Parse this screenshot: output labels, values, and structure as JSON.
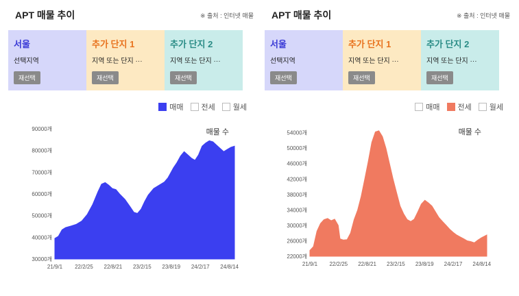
{
  "panels": [
    {
      "title": "APT 매물 추이",
      "source": "※ 출처 : 인터넷 매물",
      "cards": [
        {
          "name": "서울",
          "sub": "선택지역",
          "button": "재선택",
          "bg": "#d6d7fa",
          "color": "#3a3ad6"
        },
        {
          "name": "추가 단지 1",
          "sub": "지역 또는 단지 ···",
          "button": "재선택",
          "bg": "#fde9c2",
          "color": "#e8721e"
        },
        {
          "name": "추가 단지 2",
          "sub": "지역 또는 단지 ···",
          "button": "재선택",
          "bg": "#c9ecea",
          "color": "#2a8c86"
        }
      ],
      "legend": [
        {
          "label": "매매",
          "active": true,
          "color": "#3b3ff0"
        },
        {
          "label": "전세",
          "active": false,
          "color": "#f07a60"
        },
        {
          "label": "월세",
          "active": false,
          "color": "#888888"
        }
      ],
      "count_label": "매물 수"
    },
    {
      "title": "APT 매물 추이",
      "source": "※ 출처 : 인터넷 매물",
      "cards": [
        {
          "name": "서울",
          "sub": "선택지역",
          "button": "재선택",
          "bg": "#d6d7fa",
          "color": "#3a3ad6"
        },
        {
          "name": "추가 단지 1",
          "sub": "지역 또는 단지 ···",
          "button": "재선택",
          "bg": "#fde9c2",
          "color": "#e8721e"
        },
        {
          "name": "추가 단지 2",
          "sub": "지역 또는 단지 ···",
          "button": "재선택",
          "bg": "#c9ecea",
          "color": "#2a8c86"
        }
      ],
      "legend": [
        {
          "label": "매매",
          "active": false,
          "color": "#3b3ff0"
        },
        {
          "label": "전세",
          "active": true,
          "color": "#f07a60"
        },
        {
          "label": "월세",
          "active": false,
          "color": "#888888"
        }
      ],
      "count_label": "매물 수"
    }
  ],
  "chart_data": [
    {
      "type": "area",
      "series_label": "매매",
      "color": "#3b3ff0",
      "y_ticks": [
        30000,
        40000,
        50000,
        60000,
        70000,
        80000,
        90000
      ],
      "y_tick_labels": [
        "30000개",
        "40000개",
        "50000개",
        "60000개",
        "70000개",
        "80000개",
        "90000개"
      ],
      "ylim": [
        30000,
        90000
      ],
      "x_ticks": [
        "21/9/1",
        "22/2/25",
        "22/8/21",
        "23/2/15",
        "23/8/19",
        "24/2/17",
        "24/8/14"
      ],
      "x_tick_pos": [
        0,
        0.162,
        0.324,
        0.486,
        0.648,
        0.81,
        0.972
      ],
      "points": [
        [
          0,
          39500
        ],
        [
          0.02,
          40500
        ],
        [
          0.04,
          43500
        ],
        [
          0.06,
          44500
        ],
        [
          0.09,
          45200
        ],
        [
          0.12,
          46000
        ],
        [
          0.15,
          47500
        ],
        [
          0.18,
          50500
        ],
        [
          0.21,
          55000
        ],
        [
          0.24,
          61000
        ],
        [
          0.26,
          64500
        ],
        [
          0.28,
          65200
        ],
        [
          0.3,
          64000
        ],
        [
          0.32,
          62500
        ],
        [
          0.34,
          62000
        ],
        [
          0.36,
          60000
        ],
        [
          0.39,
          57500
        ],
        [
          0.42,
          54000
        ],
        [
          0.44,
          51500
        ],
        [
          0.46,
          51000
        ],
        [
          0.48,
          53000
        ],
        [
          0.5,
          56500
        ],
        [
          0.52,
          59500
        ],
        [
          0.55,
          62500
        ],
        [
          0.58,
          64000
        ],
        [
          0.61,
          65500
        ],
        [
          0.63,
          67500
        ],
        [
          0.66,
          72000
        ],
        [
          0.68,
          74500
        ],
        [
          0.7,
          77500
        ],
        [
          0.72,
          79500
        ],
        [
          0.74,
          78000
        ],
        [
          0.76,
          76500
        ],
        [
          0.78,
          75500
        ],
        [
          0.8,
          78000
        ],
        [
          0.82,
          82000
        ],
        [
          0.84,
          83500
        ],
        [
          0.86,
          84500
        ],
        [
          0.88,
          84000
        ],
        [
          0.9,
          82500
        ],
        [
          0.92,
          81000
        ],
        [
          0.94,
          79500
        ],
        [
          0.96,
          80500
        ],
        [
          0.98,
          81500
        ],
        [
          1,
          82000
        ]
      ]
    },
    {
      "type": "area",
      "series_label": "전세",
      "color": "#f07a60",
      "y_ticks": [
        22000,
        26000,
        30000,
        34000,
        38000,
        42000,
        46000,
        50000,
        54000
      ],
      "y_tick_labels": [
        "22000개",
        "26000개",
        "30000개",
        "34000개",
        "38000개",
        "42000개",
        "46000개",
        "50000개",
        "54000개"
      ],
      "ylim": [
        22000,
        55000
      ],
      "x_ticks": [
        "21/9/1",
        "22/2/25",
        "22/8/21",
        "23/2/15",
        "23/8/19",
        "24/2/17",
        "24/8/14"
      ],
      "x_tick_pos": [
        0,
        0.162,
        0.324,
        0.486,
        0.648,
        0.81,
        0.972
      ],
      "points": [
        [
          0,
          23500
        ],
        [
          0.02,
          24500
        ],
        [
          0.04,
          28500
        ],
        [
          0.06,
          30500
        ],
        [
          0.08,
          31500
        ],
        [
          0.1,
          31800
        ],
        [
          0.12,
          31200
        ],
        [
          0.14,
          31600
        ],
        [
          0.16,
          30000
        ],
        [
          0.17,
          26500
        ],
        [
          0.19,
          26200
        ],
        [
          0.21,
          26300
        ],
        [
          0.23,
          28000
        ],
        [
          0.25,
          31500
        ],
        [
          0.27,
          34000
        ],
        [
          0.29,
          37500
        ],
        [
          0.31,
          42000
        ],
        [
          0.33,
          46500
        ],
        [
          0.35,
          51500
        ],
        [
          0.37,
          54200
        ],
        [
          0.39,
          54500
        ],
        [
          0.41,
          53000
        ],
        [
          0.43,
          50000
        ],
        [
          0.45,
          46000
        ],
        [
          0.47,
          42000
        ],
        [
          0.49,
          38500
        ],
        [
          0.51,
          35000
        ],
        [
          0.53,
          33000
        ],
        [
          0.55,
          31500
        ],
        [
          0.57,
          31000
        ],
        [
          0.59,
          31600
        ],
        [
          0.61,
          33500
        ],
        [
          0.63,
          35500
        ],
        [
          0.65,
          36500
        ],
        [
          0.67,
          35800
        ],
        [
          0.69,
          35000
        ],
        [
          0.71,
          33500
        ],
        [
          0.73,
          32000
        ],
        [
          0.75,
          31000
        ],
        [
          0.77,
          30000
        ],
        [
          0.79,
          29000
        ],
        [
          0.81,
          28200
        ],
        [
          0.83,
          27500
        ],
        [
          0.85,
          27000
        ],
        [
          0.87,
          26500
        ],
        [
          0.89,
          26000
        ],
        [
          0.91,
          25800
        ],
        [
          0.93,
          25500
        ],
        [
          0.95,
          26200
        ],
        [
          0.97,
          26800
        ],
        [
          1,
          27500
        ]
      ]
    }
  ]
}
